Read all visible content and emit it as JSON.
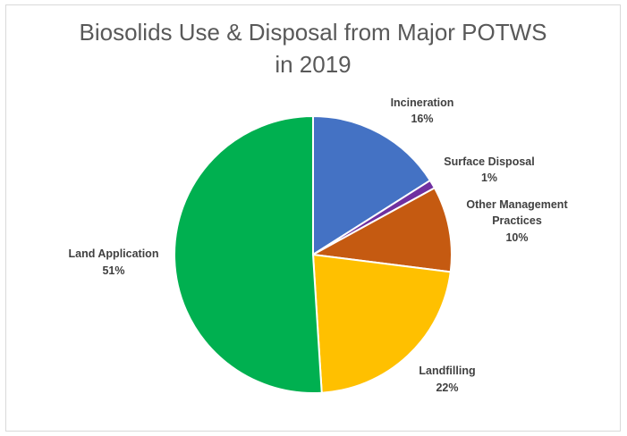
{
  "chart_data": {
    "type": "pie",
    "title": "Biosolids Use & Disposal from Major POTWS in 2019",
    "title_lines": [
      "Biosolids Use & Disposal from Major POTWS",
      "in 2019"
    ],
    "slices": [
      {
        "label": "Incineration",
        "value": 16,
        "percent_label": "16%",
        "color": "#4472C4"
      },
      {
        "label": "Surface Disposal",
        "value": 1,
        "percent_label": "1%",
        "color": "#7030A0"
      },
      {
        "label": "Other Management Practices",
        "label_lines": [
          "Other Management",
          "Practices"
        ],
        "value": 10,
        "percent_label": "10%",
        "color": "#C55A11"
      },
      {
        "label": "Landfilling",
        "value": 22,
        "percent_label": "22%",
        "color": "#FFC000"
      },
      {
        "label": "Land Application",
        "value": 51,
        "percent_label": "51%",
        "color": "#00B050"
      }
    ],
    "legend": "none",
    "data_labels": "outside"
  }
}
